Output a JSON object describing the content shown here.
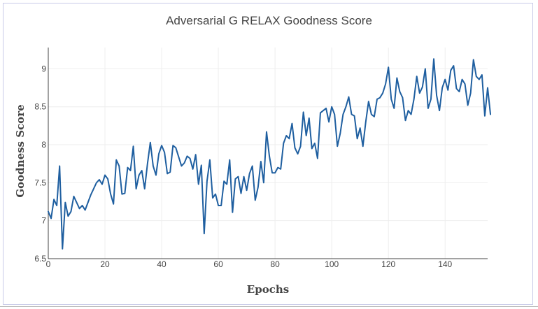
{
  "chart_data": {
    "type": "line",
    "title": "Adversarial G RELAX Goodness Score",
    "xlabel": "Epochs",
    "ylabel": "Goodness Score",
    "xlim": [
      0,
      155
    ],
    "ylim": [
      6.5,
      9.28
    ],
    "x_ticks": [
      0,
      20,
      40,
      60,
      80,
      100,
      120,
      140
    ],
    "y_ticks": [
      6.5,
      7,
      7.5,
      8,
      8.5,
      9
    ],
    "x_tick_labels": [
      "0",
      "20",
      "40",
      "60",
      "80",
      "100",
      "120",
      "140"
    ],
    "y_tick_labels": [
      "6.5",
      "7",
      "7.5",
      "8",
      "8.5",
      "9"
    ],
    "grid": true,
    "color": "#1f5fa0",
    "series": [
      {
        "values": [
          7.12,
          7.03,
          7.28,
          7.2,
          7.72,
          6.63,
          7.24,
          7.06,
          7.12,
          7.32,
          7.24,
          7.16,
          7.2,
          7.14,
          7.24,
          7.34,
          7.42,
          7.5,
          7.54,
          7.48,
          7.6,
          7.55,
          7.35,
          7.22,
          7.8,
          7.72,
          7.35,
          7.36,
          7.7,
          7.66,
          7.98,
          7.42,
          7.6,
          7.66,
          7.42,
          7.75,
          8.03,
          7.72,
          7.6,
          7.88,
          7.99,
          7.9,
          7.62,
          7.64,
          7.99,
          7.96,
          7.84,
          7.72,
          7.76,
          7.85,
          7.82,
          7.68,
          7.87,
          7.48,
          7.73,
          6.83,
          7.52,
          7.8,
          7.3,
          7.35,
          7.2,
          7.2,
          7.52,
          7.48,
          7.8,
          7.11,
          7.55,
          7.58,
          7.36,
          7.58,
          7.4,
          7.62,
          7.72,
          7.27,
          7.44,
          7.78,
          7.5,
          8.17,
          7.85,
          7.63,
          7.63,
          7.7,
          7.68,
          8.02,
          8.12,
          8.08,
          8.28,
          7.96,
          7.88,
          7.98,
          8.43,
          8.12,
          8.35,
          7.95,
          8.02,
          7.82,
          8.42,
          8.45,
          8.48,
          8.3,
          8.5,
          8.4,
          7.98,
          8.15,
          8.4,
          8.5,
          8.63,
          8.4,
          8.38,
          8.08,
          8.22,
          7.98,
          8.3,
          8.57,
          8.4,
          8.37,
          8.6,
          8.62,
          8.68,
          8.8,
          9.02,
          8.6,
          8.48,
          8.88,
          8.7,
          8.62,
          8.32,
          8.45,
          8.4,
          8.6,
          8.9,
          8.68,
          8.76,
          9.0,
          8.48,
          8.6,
          9.13,
          8.65,
          8.45,
          8.75,
          8.86,
          8.72,
          8.98,
          9.04,
          8.74,
          8.7,
          8.86,
          8.8,
          8.52,
          8.68,
          9.12,
          8.9,
          8.86,
          8.92,
          8.38,
          8.75,
          8.4
        ]
      }
    ]
  }
}
